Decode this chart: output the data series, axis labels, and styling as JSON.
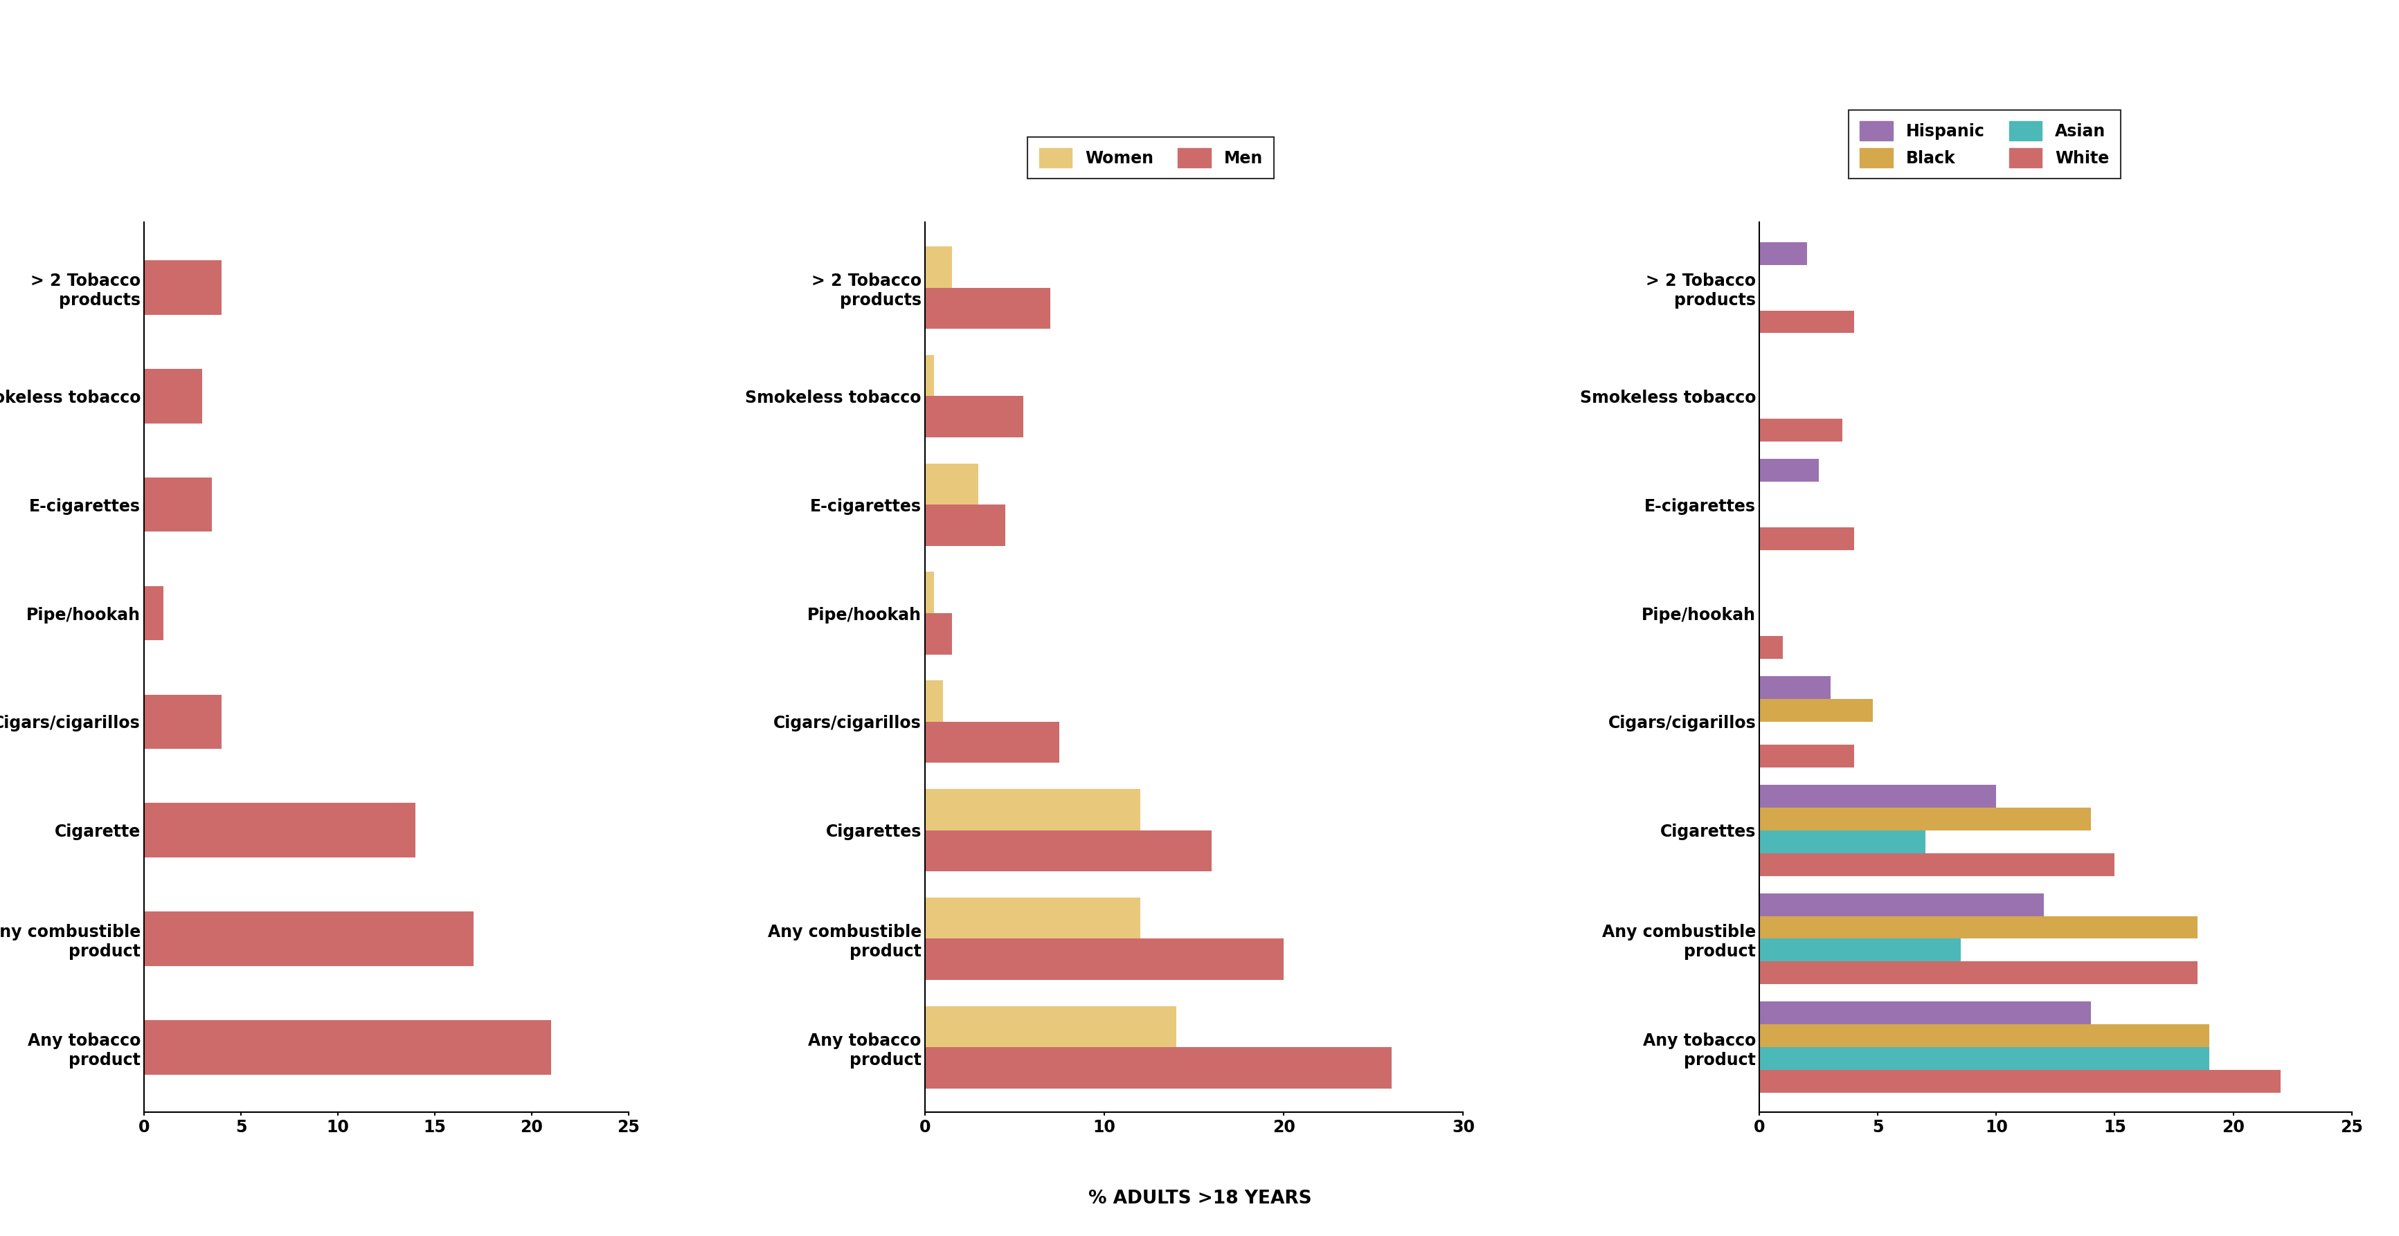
{
  "xlabel": "% ADULTS >18 YEARS",
  "categories_p1": [
    "Any tobacco\nproduct",
    "Any combustible\nproduct",
    "Cigarette",
    "Cigars/cigarillos",
    "Pipe/hookah",
    "E-cigarettes",
    "Smokeless tobacco",
    "> 2 Tobacco\nproducts"
  ],
  "categories_p23": [
    "Any tobacco\nproduct",
    "Any combustible\nproduct",
    "Cigarettes",
    "Cigars/cigarillos",
    "Pipe/hookah",
    "E-cigarettes",
    "Smokeless tobacco",
    "> 2 Tobacco\nproducts"
  ],
  "panel1": {
    "series": {
      "Overall": [
        21,
        17,
        14,
        4,
        1,
        3.5,
        3,
        4
      ]
    },
    "colors": {
      "Overall": "#cd6b6b"
    },
    "xlim": [
      0,
      25
    ],
    "xticks": [
      0,
      5,
      10,
      15,
      20,
      25
    ]
  },
  "panel2": {
    "legend_labels": [
      "Women",
      "Men"
    ],
    "series": {
      "Women": [
        14,
        12,
        12,
        1,
        0.5,
        3,
        0.5,
        1.5
      ],
      "Men": [
        26,
        20,
        16,
        7.5,
        1.5,
        4.5,
        5.5,
        7
      ]
    },
    "colors": {
      "Women": "#e8c97b",
      "Men": "#cd6b6b"
    },
    "xlim": [
      0,
      30
    ],
    "xticks": [
      0,
      10,
      20,
      30
    ]
  },
  "panel3": {
    "legend_labels": [
      "Hispanic",
      "Black",
      "Asian",
      "White"
    ],
    "series": {
      "Hispanic": [
        14,
        12,
        10,
        3,
        0,
        2.5,
        0,
        2
      ],
      "Black": [
        19,
        18.5,
        14,
        4.8,
        0,
        0,
        0,
        0
      ],
      "Asian": [
        19,
        8.5,
        7,
        0,
        0,
        0,
        0,
        0
      ],
      "White": [
        22,
        18.5,
        15,
        4,
        1,
        4,
        3.5,
        4
      ]
    },
    "colors": {
      "Hispanic": "#9b72b0",
      "Black": "#d4a84b",
      "Asian": "#4db8b8",
      "White": "#cd6b6b"
    },
    "xlim": [
      0,
      25
    ],
    "xticks": [
      0,
      5,
      10,
      15,
      20,
      25
    ]
  },
  "background_color": "#ffffff"
}
